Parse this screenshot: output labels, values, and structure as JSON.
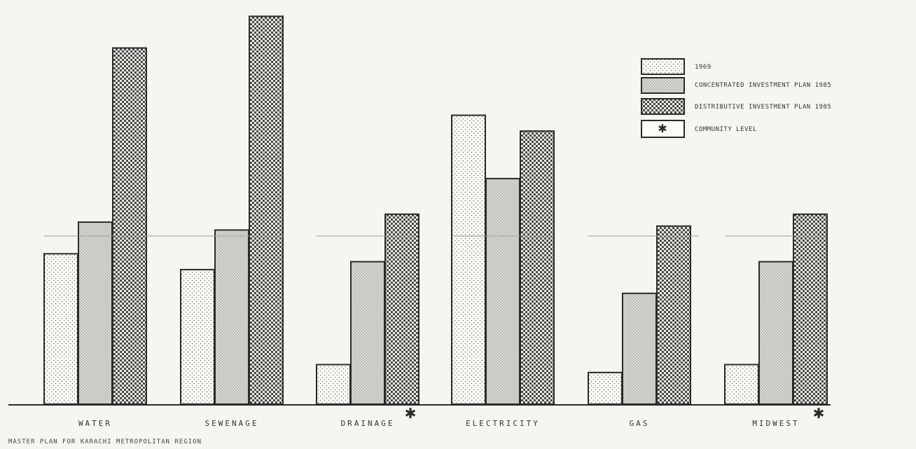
{
  "chart_data": {
    "type": "bar",
    "categories": [
      "WATER",
      "SEWENAGE",
      "DRAINAGE",
      "ELECTRICITY",
      "GAS",
      "MIDWEST"
    ],
    "series": [
      {
        "name": "1969",
        "pattern": "light",
        "values": [
          38,
          34,
          10,
          73,
          8,
          10
        ]
      },
      {
        "name": "CONCENTRATED INVESTMENT PLAN 1985",
        "pattern": "medium",
        "values": [
          46,
          44,
          36,
          57,
          28,
          36
        ]
      },
      {
        "name": "DISTRIBUTIVE INVESTMENT PLAN 1985",
        "pattern": "dense",
        "values": [
          90,
          98,
          48,
          69,
          45,
          48
        ]
      }
    ],
    "reference_line": {
      "value": 42.5,
      "style": "faint horizontal line"
    },
    "community_level_markers": [
      "DRAINAGE",
      "MIDWEST"
    ],
    "legend": {
      "placement": "top-right",
      "entries": [
        {
          "label": "1969",
          "pattern": "light"
        },
        {
          "label": "CONCENTRATED INVESTMENT PLAN 1985",
          "pattern": "medium"
        },
        {
          "label": "DISTRIBUTIVE INVESTMENT PLAN 1985",
          "pattern": "dense"
        },
        {
          "label": "COMMUNITY LEVEL",
          "pattern": "star"
        }
      ]
    },
    "caption": "MASTER PLAN FOR KARACHI METROPOLITAN REGION",
    "title": "",
    "xlabel": "",
    "ylabel": "",
    "ylim": [
      0,
      100
    ],
    "grid": false,
    "y_axis_visible": false
  },
  "colors": {
    "background": "#f6f5f1",
    "ink": "#2a2a2a",
    "light_fill": "#fbfbf8",
    "medium_fill": "#d6d6d0",
    "dense_fill": "#bdbdb6",
    "reference_line": "#9a9a9a"
  },
  "icons": {
    "community_marker": "star-asterisk-icon"
  }
}
